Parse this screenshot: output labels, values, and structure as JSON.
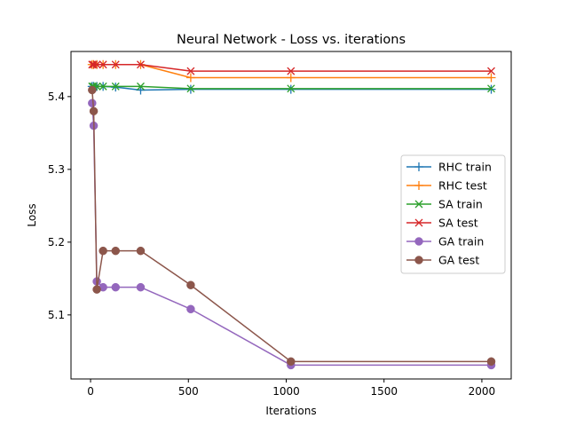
{
  "chart_data": {
    "type": "line",
    "title": "Neural Network - Loss vs. iterations",
    "xlabel": "Iterations",
    "ylabel": "Loss",
    "xlim": [
      -100,
      2150
    ],
    "ylim": [
      5.012,
      5.462
    ],
    "xticks": [
      0,
      500,
      1000,
      1500,
      2000
    ],
    "yticks": [
      5.1,
      5.2,
      5.3,
      5.4
    ],
    "grid": false,
    "legend_position": "center-right",
    "series": [
      {
        "name": "RHC train",
        "color": "#1f77b4",
        "marker": "plus",
        "x": [
          8,
          16,
          32,
          64,
          128,
          256,
          512,
          1024,
          2048
        ],
        "y": [
          5.414,
          5.414,
          5.414,
          5.414,
          5.413,
          5.409,
          5.41,
          5.41,
          5.41
        ]
      },
      {
        "name": "RHC test",
        "color": "#ff7f0e",
        "marker": "plus",
        "x": [
          8,
          16,
          32,
          64,
          128,
          256,
          512,
          1024,
          2048
        ],
        "y": [
          5.444,
          5.444,
          5.444,
          5.444,
          5.444,
          5.444,
          5.426,
          5.426,
          5.426
        ]
      },
      {
        "name": "SA train",
        "color": "#2ca02c",
        "marker": "x",
        "x": [
          8,
          16,
          32,
          64,
          128,
          256,
          512,
          1024,
          2048
        ],
        "y": [
          5.414,
          5.414,
          5.414,
          5.414,
          5.414,
          5.414,
          5.411,
          5.411,
          5.411
        ]
      },
      {
        "name": "SA test",
        "color": "#d62728",
        "marker": "x",
        "x": [
          8,
          16,
          32,
          64,
          128,
          256,
          512,
          1024,
          2048
        ],
        "y": [
          5.444,
          5.444,
          5.444,
          5.444,
          5.444,
          5.444,
          5.435,
          5.435,
          5.435
        ]
      },
      {
        "name": "GA train",
        "color": "#9467bd",
        "marker": "circle",
        "x": [
          8,
          16,
          32,
          64,
          128,
          256,
          512,
          1024,
          2048
        ],
        "y": [
          5.391,
          5.36,
          5.146,
          5.138,
          5.138,
          5.138,
          5.108,
          5.031,
          5.031
        ]
      },
      {
        "name": "GA test",
        "color": "#8c564b",
        "marker": "circle",
        "x": [
          8,
          16,
          32,
          64,
          128,
          256,
          512,
          1024,
          2048
        ],
        "y": [
          5.409,
          5.38,
          5.135,
          5.188,
          5.188,
          5.188,
          5.141,
          5.036,
          5.036
        ]
      }
    ]
  }
}
